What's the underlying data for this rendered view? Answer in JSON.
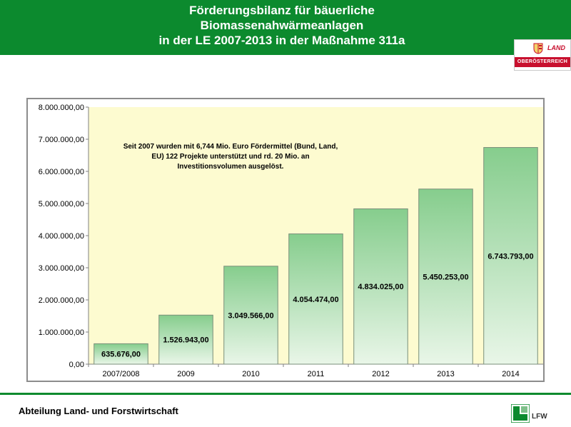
{
  "header": {
    "title_lines": [
      "Förderungsbilanz für bäuerliche",
      "Biomassenahwärmeanlagen",
      "in der LE 2007-2013 in der Maßnahme 311a"
    ],
    "logo": {
      "land": "LAND",
      "region": "OBERÖSTERREICH"
    }
  },
  "chart_data": {
    "type": "bar",
    "categories": [
      "2007/2008",
      "2009",
      "2010",
      "2011",
      "2012",
      "2013",
      "2014"
    ],
    "values": [
      635676,
      1526943,
      3049566,
      4054474,
      4834025,
      5450253,
      6743793
    ],
    "value_labels": [
      "635.676,00",
      "1.526.943,00",
      "3.049.566,00",
      "4.054.474,00",
      "4.834.025,00",
      "5.450.253,00",
      "6.743.793,00"
    ],
    "ylim": [
      0,
      8000000
    ],
    "yticks": [
      0,
      1000000,
      2000000,
      3000000,
      4000000,
      5000000,
      6000000,
      7000000,
      8000000
    ],
    "ytick_labels": [
      "0,00",
      "1.000.000,00",
      "2.000.000,00",
      "3.000.000,00",
      "4.000.000,00",
      "5.000.000,00",
      "6.000.000,00",
      "7.000.000,00",
      "8.000.000,00"
    ],
    "annotation": [
      "Seit 2007 wurden mit 6,744 Mio. Euro Fördermittel (Bund, Land,",
      "EU) 122 Projekte unterstützt und rd. 20 Mio. an",
      "Investitionsvolumen ausgelöst."
    ],
    "grid": false,
    "colors": {
      "plot_bg": "#fdfbd0",
      "bar_top": "#86cd8d",
      "bar_bottom": "#e9f6e8",
      "bar_border": "#7a8f7a"
    }
  },
  "footer": {
    "text": "Abteilung Land- und Forstwirtschaft",
    "logo_label": "LFW"
  }
}
